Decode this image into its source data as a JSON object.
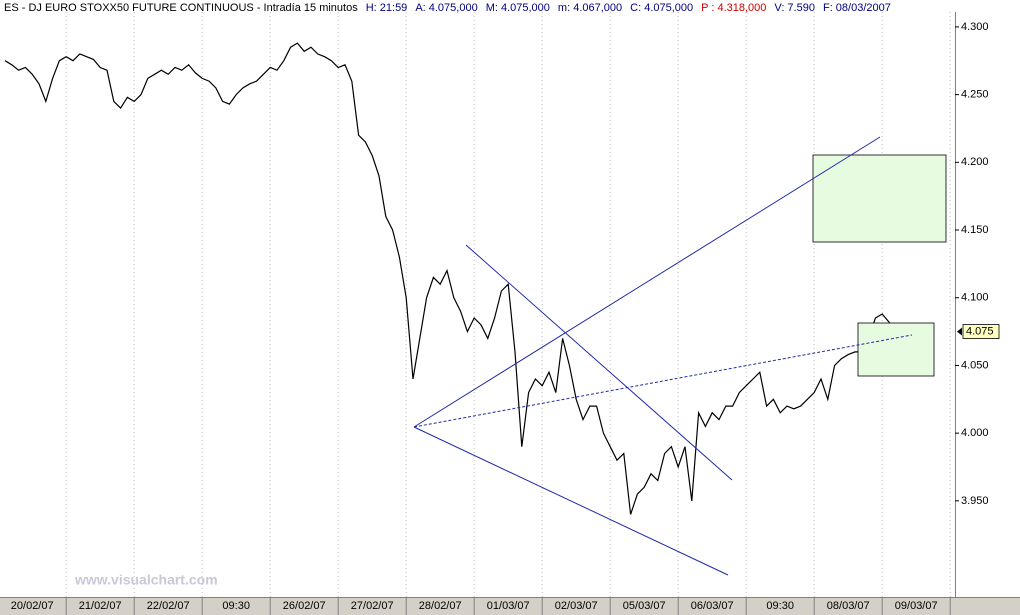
{
  "chart_data": {
    "type": "line",
    "title": "ES - DJ EURO STOXX50 FUTURE CONTINUOUS - Intradía 15 minutos",
    "info": [
      "H: 21:59",
      "A: 4.075,000",
      "M: 4.075,000",
      "m: 4.067,000",
      "C: 4.075,000",
      "P : 4.318,000",
      "V: 7.590",
      "F: 08/03/2007"
    ],
    "info_colors": [
      "#000080",
      "#000080",
      "#000080",
      "#000080",
      "#000080",
      "#cc0000",
      "#000080",
      "#000080"
    ],
    "watermark": "www.visualchart.com",
    "last_price": {
      "value": 4.075,
      "label": "4.075"
    },
    "categories": [
      null,
      null,
      null,
      null,
      "20/02/07",
      null,
      null,
      null,
      null,
      null,
      null,
      null,
      null,
      null,
      "21/02/07",
      null,
      null,
      null,
      null,
      null,
      null,
      null,
      null,
      null,
      "22/02/07",
      null,
      null,
      null,
      null,
      null,
      null,
      null,
      null,
      null,
      "09:30",
      null,
      null,
      null,
      null,
      null,
      null,
      null,
      null,
      null,
      "26/02/07",
      null,
      null,
      null,
      null,
      null,
      null,
      null,
      null,
      null,
      "27/02/07",
      null,
      null,
      null,
      null,
      null,
      null,
      null,
      null,
      null,
      "28/02/07",
      null,
      null,
      null,
      null,
      null,
      null,
      null,
      null,
      null,
      "01/03/07",
      null,
      null,
      null,
      null,
      null,
      null,
      null,
      null,
      null,
      "02/03/07",
      null,
      null,
      null,
      null,
      null,
      null,
      null,
      null,
      null,
      "05/03/07",
      null,
      null,
      null,
      null,
      null,
      null,
      null,
      null,
      null,
      "06/03/07",
      null,
      null,
      null,
      null,
      null,
      null,
      null,
      null,
      null,
      "09:30",
      null,
      null,
      null,
      null,
      null,
      null,
      null,
      null,
      null,
      "08/03/07",
      null,
      null,
      null,
      null,
      null,
      null,
      null,
      null,
      null,
      "09/03/07",
      null,
      null,
      null,
      null,
      null
    ],
    "series": [
      {
        "name": "ES",
        "color": "#000000",
        "values": [
          4.275,
          4.272,
          4.268,
          4.27,
          4.265,
          4.258,
          4.245,
          4.262,
          4.275,
          4.278,
          4.275,
          4.28,
          4.278,
          4.276,
          4.27,
          4.268,
          4.245,
          4.24,
          4.248,
          4.245,
          4.25,
          4.262,
          4.265,
          4.268,
          4.265,
          4.27,
          4.268,
          4.272,
          4.266,
          4.262,
          4.26,
          4.255,
          4.245,
          4.243,
          4.25,
          4.255,
          4.258,
          4.26,
          4.265,
          4.27,
          4.268,
          4.275,
          4.285,
          4.288,
          4.282,
          4.285,
          4.28,
          4.278,
          4.275,
          4.27,
          4.272,
          4.26,
          4.22,
          4.215,
          4.205,
          4.19,
          4.16,
          4.15,
          4.13,
          4.1,
          4.04,
          4.07,
          4.1,
          4.115,
          4.11,
          4.12,
          4.1,
          4.09,
          4.075,
          4.085,
          4.08,
          4.07,
          4.085,
          4.105,
          4.11,
          4.06,
          3.99,
          4.03,
          4.04,
          4.035,
          4.045,
          4.03,
          4.07,
          4.05,
          4.025,
          4.01,
          4.02,
          4.02,
          4.0,
          3.99,
          3.98,
          3.985,
          3.94,
          3.955,
          3.96,
          3.97,
          3.965,
          3.985,
          3.99,
          3.975,
          3.99,
          3.95,
          4.015,
          4.005,
          4.015,
          4.01,
          4.02,
          4.02,
          4.03,
          4.035,
          4.04,
          4.045,
          4.02,
          4.025,
          4.015,
          4.02,
          4.018,
          4.02,
          4.025,
          4.03,
          4.04,
          4.025,
          4.05,
          4.055,
          4.058,
          4.06,
          4.06,
          4.07,
          4.085,
          4.088,
          4.082,
          4.072,
          null,
          null,
          null,
          null,
          null,
          null,
          null,
          null
        ]
      }
    ],
    "ylim": [
      3.879,
      4.311
    ],
    "yticks": [
      {
        "value": 3.95,
        "label": "3.950"
      },
      {
        "value": 4.0,
        "label": "4.000"
      },
      {
        "value": 4.05,
        "label": "4.050"
      },
      {
        "value": 4.1,
        "label": "4.100"
      },
      {
        "value": 4.15,
        "label": "4.150"
      },
      {
        "value": 4.2,
        "label": "4.200"
      },
      {
        "value": 4.25,
        "label": "4.250"
      },
      {
        "value": 4.3,
        "label": "4.300"
      }
    ]
  }
}
